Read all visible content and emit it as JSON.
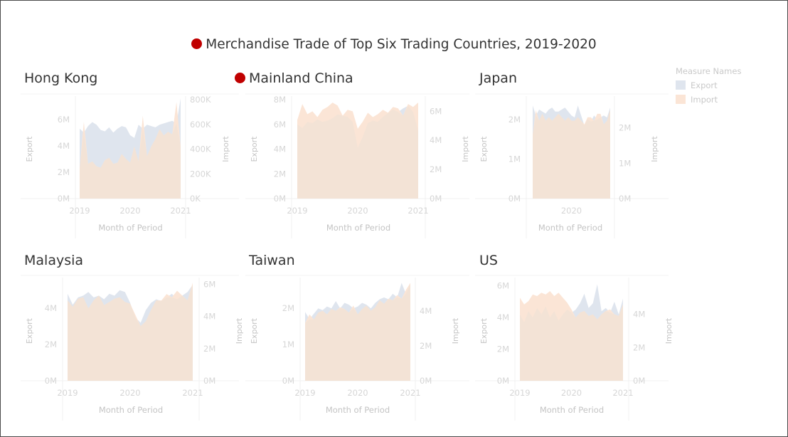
{
  "dashboard": {
    "title": "Merchandise Trade of Top Six Trading Countries, 2019-2020"
  },
  "legend": {
    "title": "Measure Names",
    "items": [
      {
        "label": "Export",
        "color": "#dfe5ee"
      },
      {
        "label": "Import",
        "color": "#fbe5d6"
      }
    ]
  },
  "colors": {
    "export_area": "#dfe5ee",
    "import_area": "#fbe5d6",
    "overlap_area": "#f3e3d6",
    "axis_text": "#d6d6d6",
    "axis_title": "#c4c4c4",
    "grid": "#f0f0f0",
    "title_marker": "#c00000"
  },
  "chart_data": [
    {
      "type": "area",
      "title": "Hong Kong",
      "title_marker": false,
      "xlabel": "Month of Period",
      "x_ticks": [
        "2019",
        "2020",
        "2021"
      ],
      "x_range": [
        "2019-01",
        "2021-01"
      ],
      "y_left": {
        "label": "Export",
        "range": [
          0,
          7500000
        ],
        "ticks": [
          "0M",
          "2M",
          "4M",
          "6M"
        ]
      },
      "y_right": {
        "label": "Import",
        "range": [
          0,
          800000
        ],
        "ticks": [
          "0K",
          "200K",
          "400K",
          "600K",
          "800K"
        ]
      },
      "series": [
        {
          "name": "Export",
          "axis": "left",
          "values": [
            5300000,
            5000000,
            5500000,
            5800000,
            5600000,
            5200000,
            5100000,
            5400000,
            5000000,
            5300000,
            5500000,
            5400000,
            4800000,
            4600000,
            5600000,
            5300000,
            5600000,
            5500000,
            5400000,
            5600000,
            5700000,
            5800000,
            5900000,
            5700000,
            7600000
          ]
        },
        {
          "name": "Import",
          "axis": "right",
          "values": [
            240000,
            620000,
            280000,
            300000,
            260000,
            250000,
            310000,
            330000,
            280000,
            290000,
            360000,
            320000,
            290000,
            420000,
            300000,
            670000,
            340000,
            420000,
            480000,
            560000,
            510000,
            540000,
            520000,
            780000,
            420000
          ]
        }
      ]
    },
    {
      "type": "area",
      "title": "Mainland China",
      "title_marker": true,
      "xlabel": "Month of Period",
      "x_ticks": [
        "2019",
        "2020",
        "2021"
      ],
      "x_range": [
        "2019-01",
        "2021-01"
      ],
      "y_left": {
        "label": "Export",
        "range": [
          0,
          8000000
        ],
        "ticks": [
          "0M",
          "2M",
          "4M",
          "6M",
          "8M"
        ]
      },
      "y_right": {
        "label": "Import",
        "range": [
          0,
          6800000
        ],
        "ticks": [
          "0M",
          "2M",
          "4M",
          "6M"
        ]
      },
      "series": [
        {
          "name": "Export",
          "axis": "left",
          "values": [
            6000000,
            5700000,
            6200000,
            6100000,
            6400000,
            6200000,
            6300000,
            6500000,
            6800000,
            6700000,
            6600000,
            6200000,
            4100000,
            5000000,
            6100000,
            6300000,
            6200000,
            6600000,
            6900000,
            7200000,
            7000000,
            7300000,
            7500000,
            7000000,
            5500000
          ]
        },
        {
          "name": "Import",
          "axis": "right",
          "values": [
            5400000,
            6500000,
            5800000,
            6000000,
            5600000,
            6100000,
            6300000,
            6600000,
            6400000,
            5700000,
            6100000,
            6000000,
            4800000,
            5300000,
            5900000,
            5600000,
            5800000,
            6100000,
            5900000,
            6300000,
            6200000,
            5700000,
            6500000,
            6300000,
            6600000
          ]
        }
      ]
    },
    {
      "type": "area",
      "title": "Japan",
      "title_marker": false,
      "xlabel": "Month of Period",
      "x_ticks": [
        "2020"
      ],
      "x_range": [
        "2019-01",
        "2021-01"
      ],
      "y_left": {
        "label": "Export",
        "range": [
          0,
          2500000
        ],
        "ticks": [
          "0M",
          "1M",
          "2M"
        ]
      },
      "y_right": {
        "label": "Import",
        "range": [
          0,
          2800000
        ],
        "ticks": [
          "0M",
          "1M",
          "2M"
        ]
      },
      "series": [
        {
          "name": "Export",
          "axis": "left",
          "values": [
            2350000,
            2100000,
            2250000,
            2200000,
            2150000,
            2250000,
            2300000,
            2200000,
            2200000,
            2250000,
            2300000,
            2200000,
            2100000,
            2050000,
            2350000,
            2100000,
            1850000,
            2000000,
            1950000,
            2100000,
            2000000,
            2050000,
            2100000,
            2050000,
            2300000
          ]
        },
        {
          "name": "Import",
          "axis": "right",
          "values": [
            1800000,
            2500000,
            2200000,
            2400000,
            2200000,
            2300000,
            2200000,
            2300000,
            2400000,
            2300000,
            2200000,
            2300000,
            2200000,
            2200000,
            2300000,
            2200000,
            2100000,
            2300000,
            2300000,
            2200000,
            2400000,
            2400000,
            2100000,
            2200000,
            2500000
          ]
        }
      ]
    },
    {
      "type": "area",
      "title": "Malaysia",
      "title_marker": false,
      "xlabel": "Month of Period",
      "x_ticks": [
        "2019",
        "2020",
        "2021"
      ],
      "x_range": [
        "2019-01",
        "2021-01"
      ],
      "y_left": {
        "label": "Export",
        "range": [
          0,
          5500000
        ],
        "ticks": [
          "0M",
          "2M",
          "4M"
        ]
      },
      "y_right": {
        "label": "Import",
        "range": [
          0,
          6200000
        ],
        "ticks": [
          "0M",
          "2M",
          "4M",
          "6M"
        ]
      },
      "series": [
        {
          "name": "Export",
          "axis": "left",
          "values": [
            4800000,
            4200000,
            4600000,
            4700000,
            4900000,
            4600000,
            4700000,
            4500000,
            4800000,
            4700000,
            5000000,
            4900000,
            4300000,
            3500000,
            3200000,
            3900000,
            4300000,
            4500000,
            4400000,
            4600000,
            4800000,
            4500000,
            4700000,
            4900000,
            5300000
          ]
        },
        {
          "name": "Import",
          "axis": "right",
          "values": [
            5000000,
            4600000,
            5100000,
            5200000,
            4500000,
            5000000,
            5300000,
            4700000,
            4900000,
            5100000,
            5200000,
            4900000,
            4800000,
            4100000,
            3400000,
            3700000,
            4400000,
            5000000,
            5000000,
            5400000,
            5200000,
            5600000,
            5300000,
            5000000,
            6100000
          ]
        }
      ]
    },
    {
      "type": "area",
      "title": "Taiwan",
      "title_marker": false,
      "xlabel": "Month of Period",
      "x_ticks": [
        "2019",
        "2020",
        "2021"
      ],
      "x_range": [
        "2019-01",
        "2021-01"
      ],
      "y_left": {
        "label": "Export",
        "range": [
          0,
          2750000
        ],
        "ticks": [
          "0M",
          "1M",
          "2M"
        ]
      },
      "y_right": {
        "label": "Import",
        "range": [
          0,
          5700000
        ],
        "ticks": [
          "0M",
          "2M",
          "4M"
        ]
      },
      "series": [
        {
          "name": "Export",
          "axis": "left",
          "values": [
            1900000,
            1700000,
            1850000,
            2000000,
            1950000,
            2050000,
            2000000,
            2200000,
            2000000,
            2150000,
            2100000,
            2000000,
            2050000,
            2150000,
            2100000,
            2000000,
            2150000,
            2250000,
            2300000,
            2250000,
            2400000,
            2300000,
            2700000,
            2400000,
            2650000
          ]
        },
        {
          "name": "Import",
          "axis": "right",
          "values": [
            3300000,
            3800000,
            3500000,
            3900000,
            4000000,
            3800000,
            4100000,
            4000000,
            4200000,
            4100000,
            3900000,
            4300000,
            3800000,
            4100000,
            4300000,
            4000000,
            4200000,
            4600000,
            4400000,
            4700000,
            4600000,
            4900000,
            4700000,
            5200000,
            5600000
          ]
        }
      ]
    },
    {
      "type": "area",
      "title": "US",
      "title_marker": false,
      "xlabel": "Month of Period",
      "x_ticks": [
        "2019",
        "2020",
        "2021"
      ],
      "x_range": [
        "2019-01",
        "2021-01"
      ],
      "y_left": {
        "label": "Export",
        "range": [
          0,
          6300000
        ],
        "ticks": [
          "0M",
          "2M",
          "4M",
          "6M"
        ]
      },
      "y_right": {
        "label": "Import",
        "range": [
          0,
          6000000
        ],
        "ticks": [
          "0M",
          "2M",
          "4M"
        ]
      },
      "series": [
        {
          "name": "Export",
          "axis": "left",
          "values": [
            4200000,
            3700000,
            4400000,
            4000000,
            4600000,
            4200000,
            4700000,
            4000000,
            4400000,
            3800000,
            4200000,
            4500000,
            4300000,
            4500000,
            4900000,
            5500000,
            4600000,
            4900000,
            6100000,
            4400000,
            4600000,
            4300000,
            5000000,
            4200000,
            5200000
          ]
        },
        {
          "name": "Import",
          "axis": "right",
          "values": [
            5000000,
            4600000,
            4800000,
            5200000,
            5100000,
            5300000,
            5200000,
            5400000,
            5100000,
            5300000,
            5000000,
            4700000,
            4300000,
            3800000,
            4100000,
            4200000,
            3900000,
            4000000,
            3700000,
            4000000,
            4200000,
            4300000,
            4000000,
            3900000,
            4600000
          ]
        }
      ]
    }
  ]
}
